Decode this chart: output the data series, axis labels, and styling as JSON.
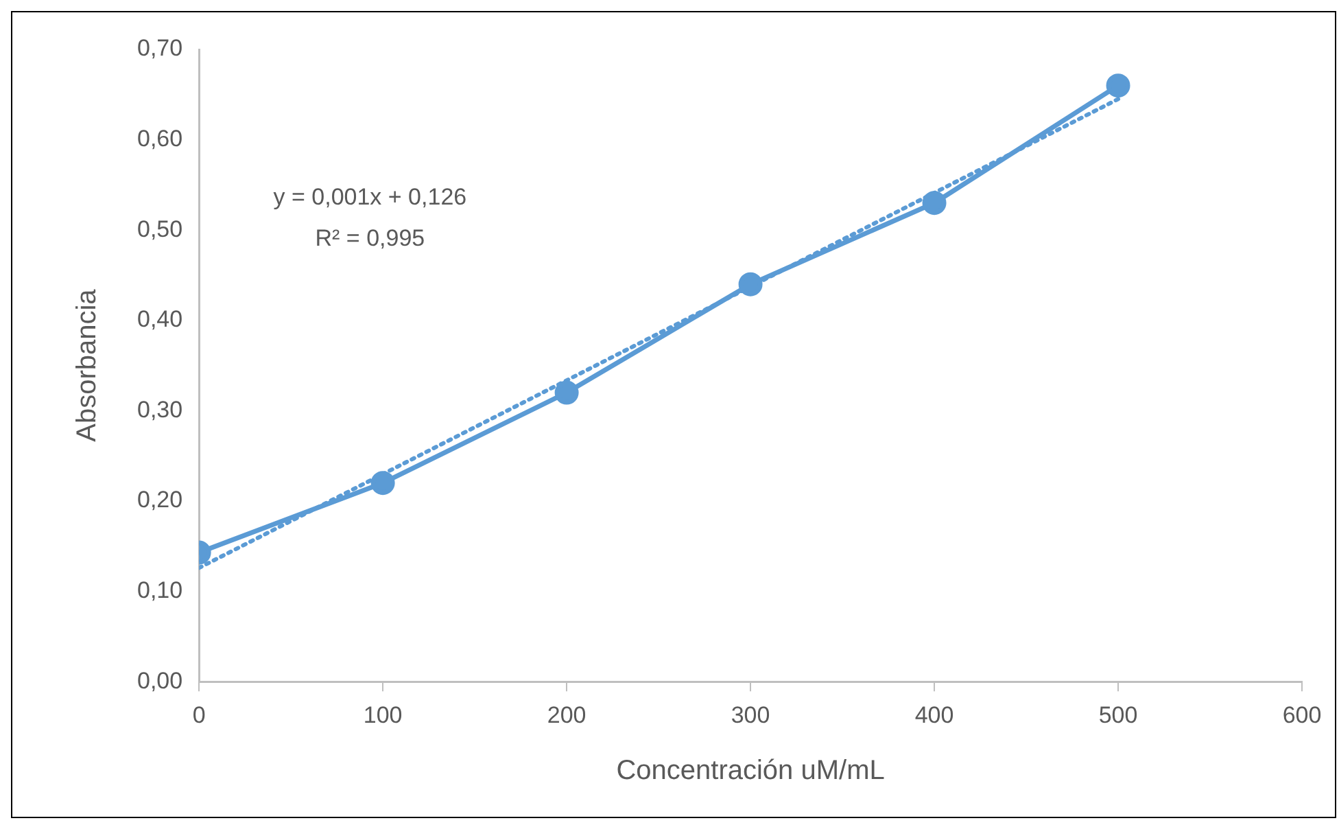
{
  "chart_data": {
    "type": "line",
    "xlabel": "Concentración uM/mL",
    "ylabel": "Absorbancia",
    "xlim": [
      0,
      600
    ],
    "xticks": [
      0,
      100,
      200,
      300,
      400,
      500,
      600
    ],
    "ylim": [
      0,
      0.7
    ],
    "yticks": [
      {
        "value": 0,
        "label": "0,00"
      },
      {
        "value": 0.1,
        "label": "0,10"
      },
      {
        "value": 0.2,
        "label": "0,20"
      },
      {
        "value": 0.3,
        "label": "0,30"
      },
      {
        "value": 0.4,
        "label": "0,40"
      },
      {
        "value": 0.5,
        "label": "0,50"
      },
      {
        "value": 0.6,
        "label": "0,60"
      },
      {
        "value": 0.7,
        "label": "0,70"
      }
    ],
    "x": [
      0,
      100,
      200,
      300,
      400,
      500
    ],
    "series": [
      {
        "color": "#5b9bd5",
        "values": [
          0.143,
          0.22,
          0.32,
          0.44,
          0.53,
          0.66
        ],
        "marker": "circle",
        "line_style": "solid"
      },
      {
        "color": "#5b9bd5",
        "x": [
          0,
          500
        ],
        "values": [
          0.126,
          0.645
        ],
        "marker": "none",
        "line_style": "dotted"
      }
    ],
    "annotations": [
      "y = 0,001x + 0,126",
      "R² = 0,995"
    ],
    "grid": false,
    "legend": false
  }
}
